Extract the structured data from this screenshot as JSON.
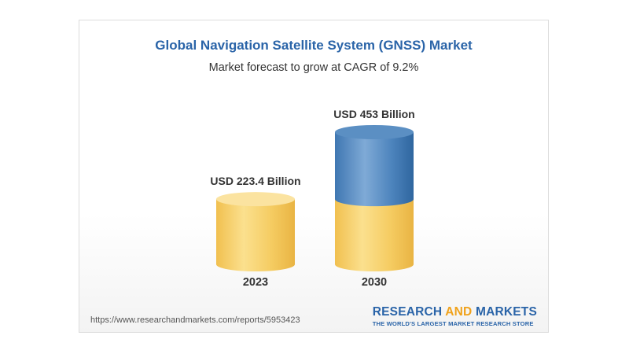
{
  "chart": {
    "title": "Global Navigation Satellite System (GNSS) Market",
    "subtitle": "Market forecast to grow at CAGR of 9.2%",
    "source_url": "https://www.researchandmarkets.com/reports/5953423"
  },
  "logo": {
    "word1": "RESEARCH",
    "word2": "AND",
    "word3": "MARKETS",
    "tagline": "THE WORLD'S LARGEST MARKET RESEARCH STORE"
  },
  "colors": {
    "title": "#2a64a8",
    "gold": "#f6cf6a",
    "blue": "#4f86bd",
    "logo_accent": "#f0a21b"
  },
  "chart_data": {
    "type": "bar",
    "categories": [
      "2023",
      "2030"
    ],
    "values": [
      223.4,
      453
    ],
    "data_labels": [
      "USD 223.4 Billion",
      "USD 453 Billion"
    ],
    "title": "Global Navigation Satellite System (GNSS) Market",
    "subtitle": "Market forecast to grow at CAGR of 9.2%",
    "unit": "USD Billion",
    "ylim": [
      0,
      453
    ],
    "segments_2030": {
      "base_value": 223.4,
      "growth_value": 229.6
    }
  }
}
